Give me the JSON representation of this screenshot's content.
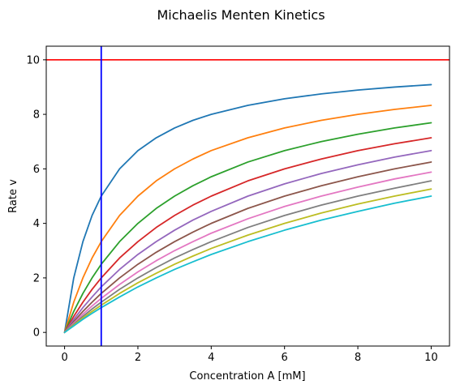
{
  "chart_data": {
    "type": "line",
    "title": "Michaelis Menten Kinetics",
    "xlabel": "Concentration A [mM]",
    "ylabel": "Rate v",
    "xlim": [
      -0.5,
      10.5
    ],
    "ylim": [
      -0.5,
      10.5
    ],
    "xticks": [
      0,
      2,
      4,
      6,
      8,
      10
    ],
    "yticks": [
      0,
      2,
      4,
      6,
      8,
      10
    ],
    "xtick_labels": [
      "0",
      "2",
      "4",
      "6",
      "8",
      "10"
    ],
    "ytick_labels": [
      "0",
      "2",
      "4",
      "6",
      "8",
      "10"
    ],
    "grid": false,
    "x": [
      0,
      0.25,
      0.5,
      0.75,
      1,
      1.5,
      2,
      2.5,
      3,
      3.5,
      4,
      5,
      6,
      7,
      8,
      9,
      10
    ],
    "series": [
      {
        "color": "#1f77b4",
        "values": [
          0,
          2,
          3.33,
          4.29,
          5,
          6,
          6.67,
          7.14,
          7.5,
          7.78,
          8,
          8.33,
          8.57,
          8.75,
          8.89,
          9,
          9.09
        ]
      },
      {
        "color": "#ff7f0e",
        "values": [
          0,
          1.11,
          2,
          2.73,
          3.33,
          4.29,
          5,
          5.56,
          6,
          6.36,
          6.67,
          7.14,
          7.5,
          7.78,
          8,
          8.18,
          8.33
        ]
      },
      {
        "color": "#2ca02c",
        "values": [
          0,
          0.77,
          1.43,
          2,
          2.5,
          3.33,
          4,
          4.55,
          5,
          5.38,
          5.71,
          6.25,
          6.67,
          7,
          7.27,
          7.5,
          7.69
        ]
      },
      {
        "color": "#d62728",
        "values": [
          0,
          0.59,
          1.11,
          1.58,
          2,
          2.73,
          3.33,
          3.85,
          4.29,
          4.67,
          5,
          5.56,
          6,
          6.36,
          6.67,
          6.92,
          7.14
        ]
      },
      {
        "color": "#9467bd",
        "values": [
          0,
          0.48,
          0.91,
          1.3,
          1.67,
          2.31,
          2.86,
          3.33,
          3.75,
          4.12,
          4.44,
          5,
          5.45,
          5.83,
          6.15,
          6.43,
          6.67
        ]
      },
      {
        "color": "#8c564b",
        "values": [
          0,
          0.4,
          0.77,
          1.11,
          1.43,
          2,
          2.5,
          2.94,
          3.33,
          3.68,
          4,
          4.55,
          5,
          5.38,
          5.71,
          6,
          6.25
        ]
      },
      {
        "color": "#e377c2",
        "values": [
          0,
          0.34,
          0.67,
          0.97,
          1.25,
          1.76,
          2.22,
          2.63,
          3,
          3.33,
          3.64,
          4.17,
          4.62,
          5,
          5.33,
          5.63,
          5.88
        ]
      },
      {
        "color": "#7f7f7f",
        "values": [
          0,
          0.3,
          0.59,
          0.86,
          1.11,
          1.58,
          2,
          2.38,
          2.73,
          3.04,
          3.33,
          3.85,
          4.29,
          4.67,
          5,
          5.29,
          5.56
        ]
      },
      {
        "color": "#bcbd22",
        "values": [
          0,
          0.27,
          0.53,
          0.77,
          1,
          1.43,
          1.82,
          2.17,
          2.5,
          2.8,
          3.08,
          3.57,
          4,
          4.38,
          4.71,
          5,
          5.26
        ]
      },
      {
        "color": "#17becf",
        "values": [
          0,
          0.24,
          0.48,
          0.7,
          0.91,
          1.3,
          1.67,
          2,
          2.31,
          2.59,
          2.86,
          3.33,
          3.75,
          4.12,
          4.44,
          4.74,
          5
        ]
      }
    ],
    "hlines": [
      {
        "y": 10,
        "color": "#ff0000"
      }
    ],
    "vlines": [
      {
        "x": 1,
        "color": "#0000ff"
      }
    ]
  }
}
